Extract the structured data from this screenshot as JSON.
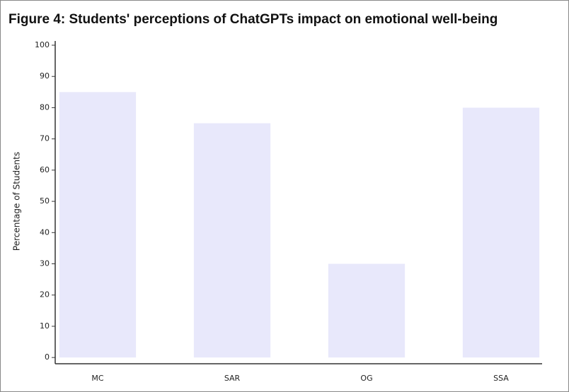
{
  "chart_data": {
    "type": "bar",
    "title": "Figure 4: Students' perceptions of ChatGPTs impact on emotional well-being",
    "y_label": "Percentage of Students",
    "categories": [
      "MC",
      "SAR",
      "OG",
      "SSA"
    ],
    "values": [
      85,
      75,
      30,
      80
    ],
    "color": "#e8e8fb",
    "ylim": [
      -2,
      100
    ],
    "yticks": [
      0,
      10,
      20,
      30,
      40,
      50,
      60,
      70,
      80,
      90,
      100
    ],
    "grid": false
  }
}
